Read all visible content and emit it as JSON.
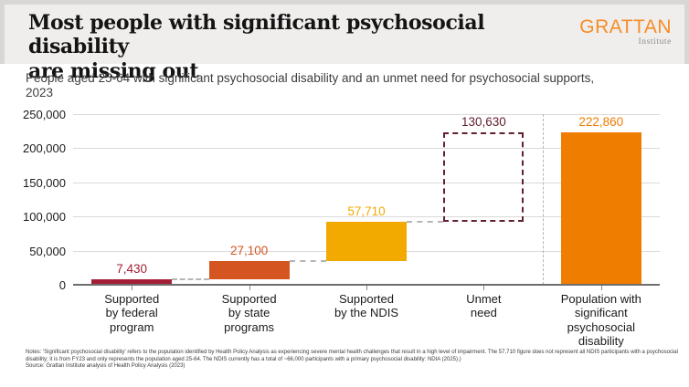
{
  "header": {
    "title": "Most people with significant psychosocial disability\nare missing out",
    "logo": {
      "brand": "GRATTAN",
      "subtext": "Institute"
    }
  },
  "subtitle": "People aged 25-64 with significant psychosocial disability and an unmet need for psychosocial supports,\n2023",
  "chart_data": {
    "type": "bar",
    "subtype": "waterfall",
    "title": "People aged 25-64 with significant psychosocial disability and an unmet need for psychosocial supports, 2023",
    "categories": [
      "Supported by federal program",
      "Supported by state programs",
      "Supported by the NDIS",
      "Unmet need",
      "Population with significant psychosocial disability"
    ],
    "category_label_lines": [
      "Supported\nby federal\nprogram",
      "Supported\nby state\nprograms",
      "Supported\nby the NDIS",
      "Unmet\nneed",
      "Population with\nsignificant\npsychosocial\ndisability"
    ],
    "series": [
      {
        "name": "Supported by federal program",
        "start": 0,
        "value": 7430,
        "label": "7,430",
        "color": "#A41E35",
        "style": "solid"
      },
      {
        "name": "Supported by state programs",
        "start": 7430,
        "value": 27100,
        "label": "27,100",
        "color": "#D4551F",
        "style": "solid"
      },
      {
        "name": "Supported by the NDIS",
        "start": 34530,
        "value": 57710,
        "label": "57,710",
        "color": "#F2A900",
        "style": "solid"
      },
      {
        "name": "Unmet need",
        "start": 92240,
        "value": 130630,
        "label": "130,630",
        "color": "#63202F",
        "style": "dashed-outline"
      },
      {
        "name": "Population with significant psychosocial disability",
        "start": 0,
        "value": 222860,
        "label": "222,860",
        "color": "#EF7D00",
        "style": "solid"
      }
    ],
    "ylim": [
      0,
      250000
    ],
    "yticks": [
      0,
      50000,
      100000,
      150000,
      200000,
      250000
    ],
    "ytick_labels": [
      "0",
      "50,000",
      "100,000",
      "150,000",
      "200,000",
      "250,000"
    ],
    "grid": true,
    "legend": false,
    "connectors_between_steps": true,
    "separator_before_index": 4
  },
  "footer": {
    "notes": "Notes: 'Significant psychosocial disability' refers to the population identified by Health Policy Analysis as experiencing severe mental health challenges that result in a high level of impairment. The 57,710 figure does not represent all NDIS participants with a psychosocial disability; it is from FY23 and only represents the population aged 25-64. The NDIS currently has a total of ~66,000 participants with a primary psychosocial disability: NDIA (2025).)",
    "source": "Source: Grattan Institute analysis of Health Policy Analysis (2023)"
  },
  "colors": {
    "federal_bar": "#A41E35",
    "state_bar": "#D4551F",
    "ndis_bar": "#F2A900",
    "unmet_outline": "#63202F",
    "total_bar": "#EF7D00",
    "gridline": "#DADADA",
    "axis": "#6E6E6E",
    "connector": "#B5B5B5",
    "logo_orange": "#F68C28",
    "header_band": "#EFEEEC"
  }
}
